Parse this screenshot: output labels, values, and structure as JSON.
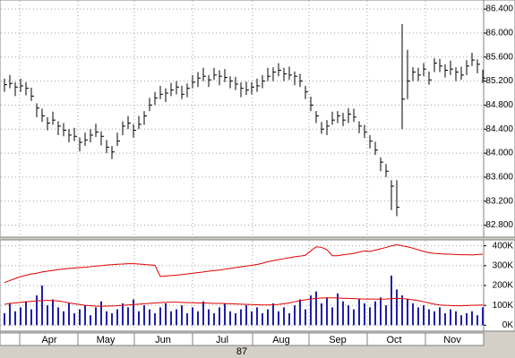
{
  "chart_data": [
    {
      "type": "ohlc",
      "color": "#000000",
      "ylim": [
        82.6,
        86.55
      ],
      "yticks": [
        {
          "value": 82.8,
          "label": "82.800"
        },
        {
          "value": 83.2,
          "label": "83.200"
        },
        {
          "value": 83.6,
          "label": "83.600"
        },
        {
          "value": 84.0,
          "label": "84.000"
        },
        {
          "value": 84.4,
          "label": "84.400"
        },
        {
          "value": 84.8,
          "label": "84.800"
        },
        {
          "value": 85.2,
          "label": "85.200"
        },
        {
          "value": 85.6,
          "label": "85.600"
        },
        {
          "value": 86.0,
          "label": "86.000"
        },
        {
          "value": 86.4,
          "label": "86.400"
        }
      ],
      "grid": true,
      "high": [
        85.24,
        85.3,
        85.18,
        85.24,
        85.18,
        85.09,
        84.83,
        84.74,
        84.6,
        84.69,
        84.53,
        84.5,
        84.4,
        84.42,
        84.26,
        84.34,
        84.4,
        84.49,
        84.36,
        84.22,
        84.12,
        84.34,
        84.53,
        84.62,
        84.48,
        84.62,
        84.7,
        84.92,
        85.02,
        85.12,
        85.08,
        85.17,
        85.2,
        85.12,
        85.16,
        85.3,
        85.35,
        85.42,
        85.3,
        85.42,
        85.38,
        85.4,
        85.28,
        85.27,
        85.18,
        85.19,
        85.18,
        85.24,
        85.3,
        85.42,
        85.43,
        85.5,
        85.42,
        85.44,
        85.36,
        85.32,
        85.12,
        84.94,
        84.7,
        84.52,
        84.55,
        84.69,
        84.7,
        84.67,
        84.75,
        84.74,
        84.53,
        84.47,
        84.3,
        84.19,
        83.93,
        83.82,
        83.55,
        83.55,
        86.15,
        85.72,
        85.43,
        85.42,
        85.5,
        85.36,
        85.58,
        85.57,
        85.48,
        85.54,
        85.43,
        85.44,
        85.55,
        85.67,
        85.56,
        85.39
      ],
      "low": [
        85.02,
        85.08,
        84.95,
        85.02,
        84.96,
        84.87,
        84.6,
        84.52,
        84.38,
        84.47,
        84.3,
        84.28,
        84.18,
        84.2,
        84.03,
        84.12,
        84.18,
        84.27,
        84.13,
        84.0,
        83.9,
        84.12,
        84.3,
        84.4,
        84.26,
        84.4,
        84.47,
        84.7,
        84.8,
        84.9,
        84.85,
        84.95,
        84.98,
        84.9,
        84.93,
        85.08,
        85.1,
        85.2,
        85.1,
        85.22,
        85.13,
        85.18,
        85.08,
        85.05,
        84.93,
        84.97,
        84.98,
        85.02,
        85.08,
        85.2,
        85.2,
        85.28,
        85.2,
        85.22,
        85.13,
        85.1,
        84.9,
        84.7,
        84.5,
        84.32,
        84.3,
        84.47,
        84.5,
        84.45,
        84.5,
        84.52,
        84.33,
        84.25,
        84.08,
        83.97,
        83.7,
        83.6,
        83.05,
        82.95,
        84.4,
        84.9,
        85.2,
        85.2,
        85.28,
        85.14,
        85.35,
        85.35,
        85.26,
        85.3,
        85.2,
        85.22,
        85.3,
        85.45,
        85.33,
        85.17
      ],
      "close": [
        85.14,
        85.16,
        85.1,
        85.12,
        85.08,
        84.95,
        84.75,
        84.62,
        84.5,
        84.55,
        84.45,
        84.38,
        84.3,
        84.28,
        84.18,
        84.22,
        84.3,
        84.35,
        84.28,
        84.1,
        84.02,
        84.2,
        84.45,
        84.5,
        84.38,
        84.48,
        84.62,
        84.8,
        84.92,
        84.98,
        85.0,
        85.05,
        85.1,
        84.98,
        85.08,
        85.18,
        85.25,
        85.28,
        85.22,
        85.3,
        85.28,
        85.26,
        85.2,
        85.15,
        85.08,
        85.05,
        85.1,
        85.12,
        85.2,
        85.28,
        85.35,
        85.38,
        85.32,
        85.3,
        85.28,
        85.2,
        85.02,
        84.8,
        84.62,
        84.4,
        84.45,
        84.55,
        84.62,
        84.55,
        84.65,
        84.6,
        84.45,
        84.35,
        84.2,
        84.05,
        83.85,
        83.7,
        83.45,
        83.1,
        84.9,
        85.2,
        85.35,
        85.3,
        85.4,
        85.22,
        85.5,
        85.45,
        85.38,
        85.4,
        85.35,
        85.3,
        85.45,
        85.55,
        85.48,
        85.25
      ]
    },
    {
      "type": "bar",
      "ylim": [
        -30000,
        430000
      ],
      "yticks": [
        {
          "value": 0,
          "label": "0K"
        },
        {
          "value": 100000,
          "label": "100K"
        },
        {
          "value": 200000,
          "label": "200K"
        },
        {
          "value": 300000,
          "label": "300K"
        },
        {
          "value": 400000,
          "label": "400K"
        }
      ],
      "series": [
        {
          "type": "bar",
          "color": "#2020a8",
          "values": [
            60000,
            110000,
            70000,
            90000,
            120000,
            80000,
            150000,
            200000,
            100000,
            130000,
            90000,
            70000,
            110000,
            60000,
            80000,
            100000,
            50000,
            90000,
            120000,
            70000,
            60000,
            80000,
            110000,
            90000,
            130000,
            70000,
            100000,
            80000,
            60000,
            90000,
            110000,
            70000,
            80000,
            100000,
            60000,
            90000,
            70000,
            120000,
            80000,
            60000,
            90000,
            110000,
            70000,
            60000,
            80000,
            100000,
            70000,
            90000,
            60000,
            80000,
            110000,
            70000,
            90000,
            60000,
            100000,
            130000,
            80000,
            150000,
            170000,
            110000,
            140000,
            90000,
            160000,
            120000,
            100000,
            80000,
            130000,
            110000,
            90000,
            120000,
            140000,
            100000,
            250000,
            180000,
            150000,
            130000,
            110000,
            90000,
            100000,
            80000,
            70000,
            90000,
            60000,
            80000,
            70000,
            50000,
            60000,
            70000,
            50000,
            90000
          ]
        },
        {
          "type": "line",
          "color": "#e00000",
          "values": [
            215000,
            225000,
            235000,
            245000,
            252000,
            258000,
            262000,
            268000,
            272000,
            276000,
            280000,
            283000,
            286000,
            288000,
            290000,
            292000,
            295000,
            298000,
            300000,
            303000,
            305000,
            307000,
            308000,
            310000,
            310000,
            308000,
            306000,
            304000,
            302000,
            245000,
            248000,
            250000,
            252000,
            255000,
            258000,
            262000,
            265000,
            268000,
            272000,
            275000,
            278000,
            282000,
            286000,
            290000,
            294000,
            298000,
            302000,
            306000,
            312000,
            320000,
            325000,
            330000,
            335000,
            340000,
            345000,
            348000,
            352000,
            375000,
            395000,
            392000,
            380000,
            350000,
            350000,
            355000,
            358000,
            362000,
            368000,
            375000,
            372000,
            378000,
            385000,
            392000,
            400000,
            405000,
            400000,
            395000,
            388000,
            380000,
            372000,
            365000,
            362000,
            360000,
            358000,
            358000,
            356000,
            355000,
            355000,
            354000,
            356000,
            358000
          ]
        },
        {
          "type": "line",
          "color": "#e00000",
          "values": [
            105000,
            110000,
            112000,
            115000,
            118000,
            120000,
            122000,
            124000,
            125000,
            124000,
            122000,
            118000,
            112000,
            108000,
            104000,
            100000,
            98000,
            96000,
            95000,
            96000,
            97000,
            98000,
            100000,
            102000,
            104000,
            106000,
            108000,
            110000,
            112000,
            114000,
            115000,
            116000,
            116000,
            115000,
            114000,
            113000,
            112000,
            112000,
            111000,
            110000,
            110000,
            109000,
            108000,
            107000,
            106000,
            105000,
            104000,
            103000,
            102000,
            102000,
            103000,
            105000,
            108000,
            112000,
            118000,
            124000,
            128000,
            132000,
            135000,
            137000,
            138000,
            138000,
            137000,
            136000,
            135000,
            134000,
            133000,
            132000,
            132000,
            131000,
            131000,
            132000,
            134000,
            135000,
            134000,
            132000,
            128000,
            124000,
            118000,
            112000,
            106000,
            102000,
            100000,
            99000,
            98000,
            98000,
            99000,
            100000,
            101000,
            102000
          ]
        }
      ],
      "grid": true
    }
  ],
  "x_axis": {
    "months": [
      "Apr",
      "May",
      "Jun",
      "Jul",
      "Aug",
      "Sep",
      "Oct",
      "Nov"
    ],
    "year": "87"
  }
}
